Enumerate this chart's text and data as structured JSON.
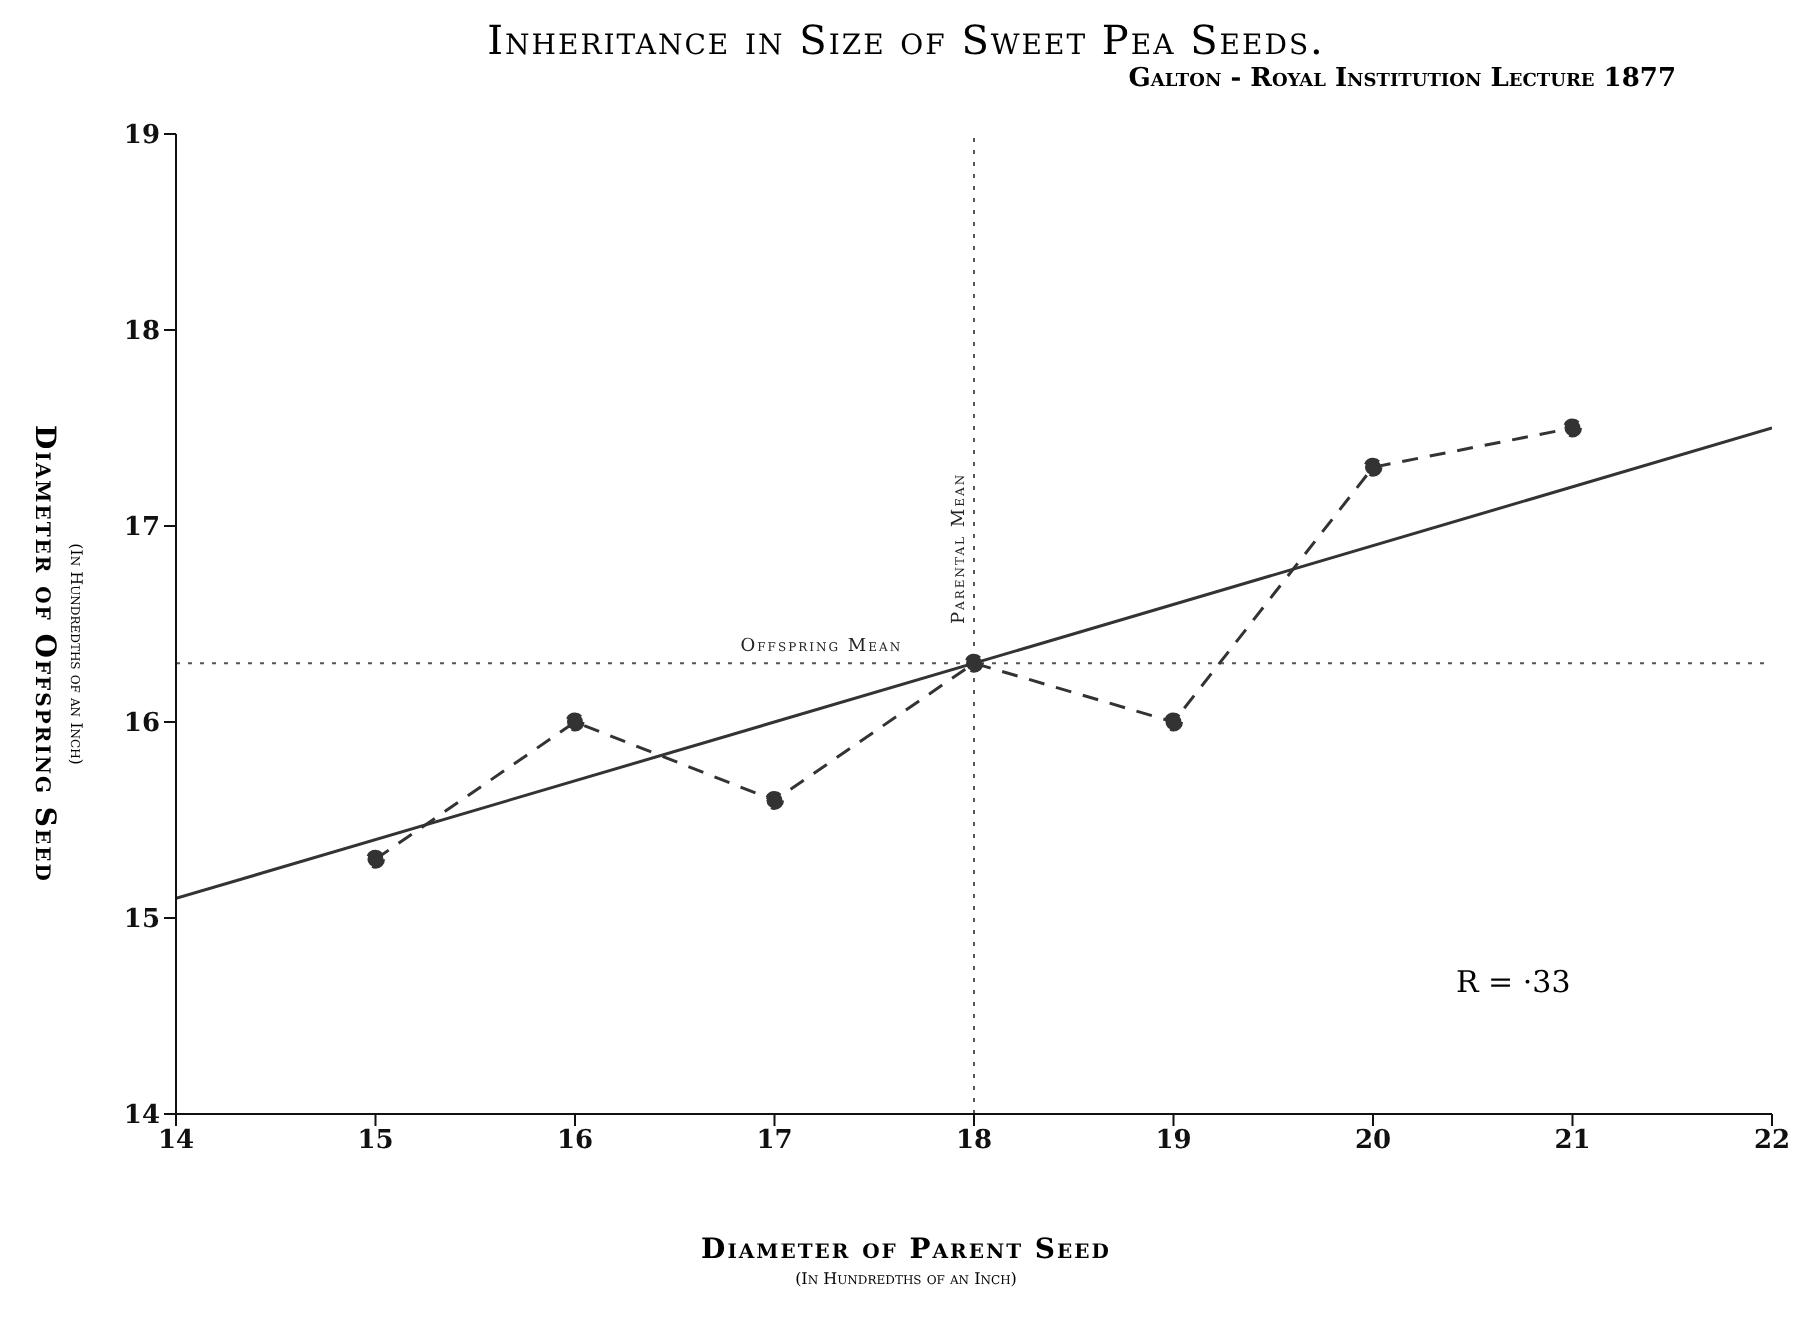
{
  "chart_data": {
    "type": "line",
    "title": "Inheritance in Size of Sweet Pea Seeds.",
    "subtitle": "Galton - Royal Institution Lecture 1877",
    "xlabel": "Diameter of Parent Seed",
    "ylabel": "Diameter of Offspring Seed",
    "annotations": [
      "R = ·33",
      "(In Hundredths of an Inch)",
      "(In Hundredths of an Inch)"
    ],
    "series": [
      {
        "color": "#333333",
        "x": [
          15,
          16,
          17,
          18,
          19,
          20,
          21
        ],
        "values": [
          15.3,
          16.0,
          15.6,
          16.3,
          16.0,
          17.3,
          17.5
        ],
        "line_style": "dashed",
        "marker": "circle"
      },
      {
        "color": "#333333",
        "x": [
          14,
          22
        ],
        "values": [
          15.1,
          17.5
        ],
        "line_style": "solid",
        "marker": "none"
      }
    ],
    "ref_lines": [
      {
        "axis": "x",
        "value": 18,
        "label": "Parental Mean",
        "color": "#555555",
        "line_style": "dotted"
      },
      {
        "axis": "y",
        "value": 16.3,
        "label": "Offspring Mean",
        "color": "#555555",
        "line_style": "dotted"
      }
    ],
    "xlim": [
      14,
      22
    ],
    "ylim": [
      14,
      19
    ],
    "xticks": [
      14,
      15,
      16,
      17,
      18,
      19,
      20,
      21,
      22
    ],
    "yticks": [
      14,
      15,
      16,
      17,
      18,
      19
    ]
  }
}
